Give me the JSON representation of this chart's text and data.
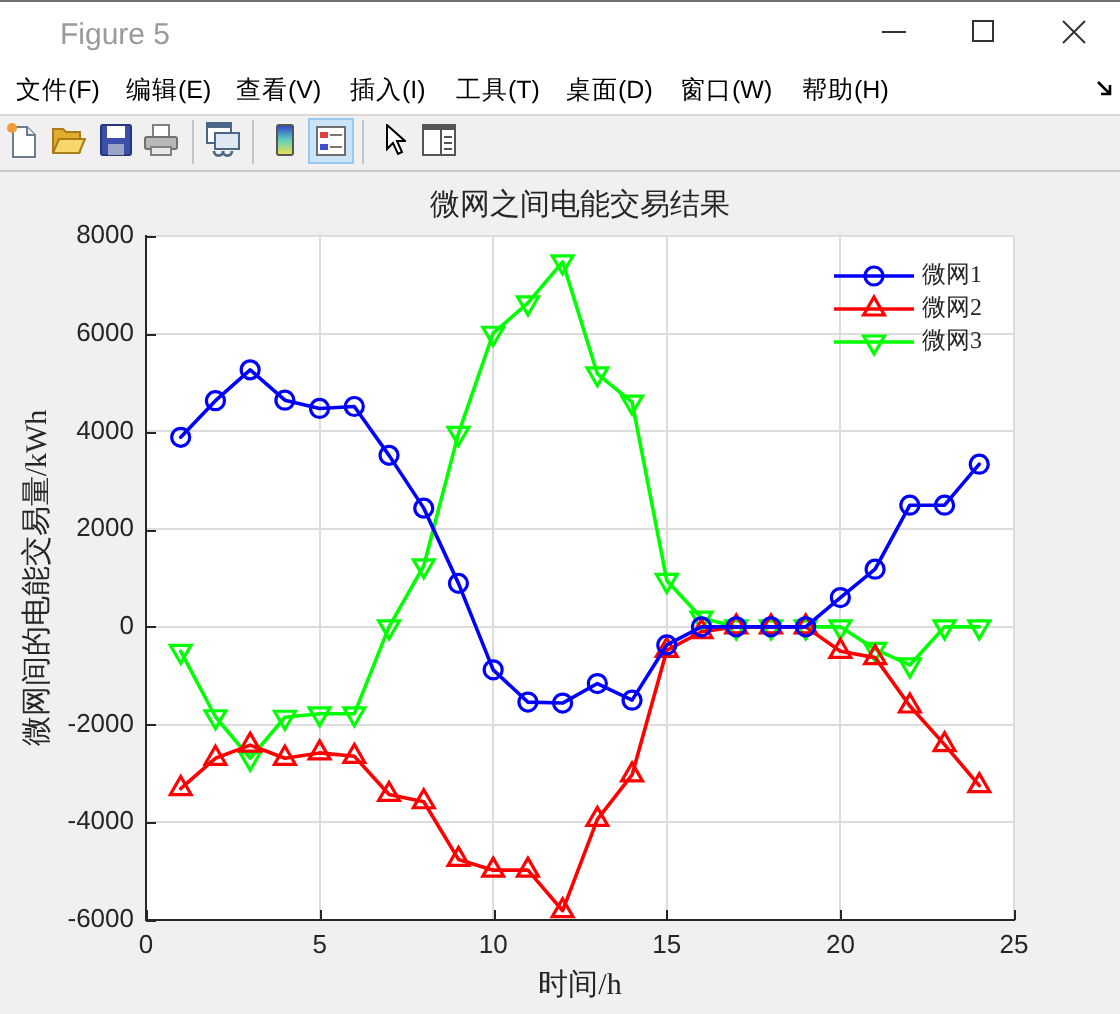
{
  "chart_data": {
    "type": "line",
    "title": "微网之间电能交易结果",
    "xlabel": "时间/h",
    "ylabel": "微网间的电能交易量/kWh",
    "x": [
      1,
      2,
      3,
      4,
      5,
      6,
      7,
      8,
      9,
      10,
      11,
      12,
      13,
      14,
      15,
      16,
      17,
      18,
      19,
      20,
      21,
      22,
      23,
      24
    ],
    "series": [
      {
        "name": "微网1",
        "color": "#0000ff",
        "marker": "circle",
        "values": [
          3880,
          4630,
          5260,
          4640,
          4470,
          4510,
          3510,
          2430,
          890,
          -880,
          -1540,
          -1560,
          -1160,
          -1500,
          -370,
          0,
          0,
          0,
          0,
          600,
          1180,
          2490,
          2490,
          3330
        ]
      },
      {
        "name": "微网2",
        "color": "#ff0000",
        "marker": "triangle",
        "values": [
          -3310,
          -2690,
          -2420,
          -2690,
          -2580,
          -2650,
          -3430,
          -3580,
          -4760,
          -4980,
          -4980,
          -5810,
          -3940,
          -3030,
          -480,
          -100,
          0,
          0,
          0,
          -500,
          -630,
          -1620,
          -2410,
          -3250
        ]
      },
      {
        "name": "微网3",
        "color": "#00ff00",
        "marker": "triangle-down",
        "values": [
          -500,
          -1840,
          -2690,
          -1850,
          -1780,
          -1780,
          0,
          1250,
          3960,
          6010,
          6630,
          7470,
          5180,
          4600,
          950,
          180,
          0,
          0,
          0,
          0,
          -460,
          -780,
          0,
          0
        ]
      }
    ],
    "xlim": [
      0,
      25
    ],
    "xticks": [
      0,
      5,
      10,
      15,
      20,
      25
    ],
    "ylim": [
      -6000,
      8000
    ],
    "yticks": [
      -6000,
      -4000,
      -2000,
      0,
      2000,
      4000,
      6000,
      8000
    ],
    "grid": true,
    "legend": "top right",
    "line_style": "solid",
    "annotations": [
      "Figure 5",
      "文件(F)",
      "编辑(E)",
      "查看(V)",
      "插入(I)",
      "工具(T)",
      "桌面(D)",
      "窗口(W)",
      "帮助(H)"
    ]
  }
}
